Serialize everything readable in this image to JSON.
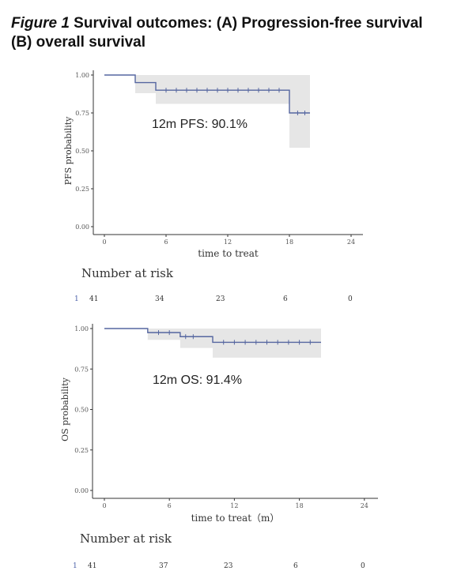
{
  "title": {
    "figure": "Figure 1",
    "rest_line1": " Survival outcomes: (A) Progression-free survival",
    "line2": "(B) overall survival"
  },
  "colors": {
    "curve": "#5566a0",
    "ci": "#e6e6e6",
    "axis": "#333333"
  },
  "chart_data": [
    {
      "type": "line",
      "subtype": "kaplan-meier",
      "title": "",
      "xlabel": "time to treat",
      "ylabel": "PFS probability",
      "xlim": [
        -1,
        25
      ],
      "ylim": [
        0,
        1
      ],
      "xticks": [
        "0",
        "6",
        "12",
        "18",
        "24"
      ],
      "yticks": [
        "0.00",
        "0.25",
        "0.50",
        "0.75",
        "1.00"
      ],
      "step_x": [
        0,
        3,
        3,
        5,
        5,
        18,
        18,
        20
      ],
      "step_y": [
        1.0,
        1.0,
        0.95,
        0.95,
        0.9,
        0.9,
        0.75,
        0.75
      ],
      "ci_band": {
        "x": [
          3,
          5,
          18,
          20
        ],
        "lower": [
          0.88,
          0.81,
          0.52,
          0.52
        ],
        "upper": [
          1.0,
          1.0,
          1.0,
          1.0
        ]
      },
      "censor_x": [
        6,
        7,
        8,
        9,
        10,
        11,
        12,
        13,
        14,
        15,
        16,
        17,
        18.8,
        19.5
      ],
      "annotation": "12m PFS: 90.1%",
      "risk_table": {
        "title": "Number at risk",
        "strata": "1",
        "times": [
          "0",
          "6",
          "12",
          "18",
          "24"
        ],
        "counts": [
          "41",
          "34",
          "23",
          "6",
          "0"
        ]
      }
    },
    {
      "type": "line",
      "subtype": "kaplan-meier",
      "title": "",
      "xlabel": "time to treat（m）",
      "ylabel": "OS probability",
      "xlim": [
        -1,
        25
      ],
      "ylim": [
        0,
        1
      ],
      "xticks": [
        "0",
        "6",
        "12",
        "18",
        "24"
      ],
      "yticks": [
        "0.00",
        "0.25",
        "0.50",
        "0.75",
        "1.00"
      ],
      "step_x": [
        0,
        4,
        4,
        7,
        7,
        10,
        10,
        20
      ],
      "step_y": [
        1.0,
        1.0,
        0.975,
        0.975,
        0.95,
        0.95,
        0.915,
        0.915
      ],
      "ci_band": {
        "x": [
          4,
          7,
          10,
          20
        ],
        "lower": [
          0.93,
          0.88,
          0.82,
          0.82
        ],
        "upper": [
          1.0,
          1.0,
          1.0,
          1.0
        ]
      },
      "censor_x": [
        5,
        6,
        7.5,
        8.2,
        11,
        12,
        13,
        14,
        15,
        16,
        17,
        18,
        19
      ],
      "annotation": "12m OS: 91.4%",
      "risk_table": {
        "title": "Number at risk",
        "strata": "1",
        "times": [
          "0",
          "6",
          "12",
          "18",
          "24"
        ],
        "counts": [
          "41",
          "37",
          "23",
          "6",
          "0"
        ]
      }
    }
  ]
}
